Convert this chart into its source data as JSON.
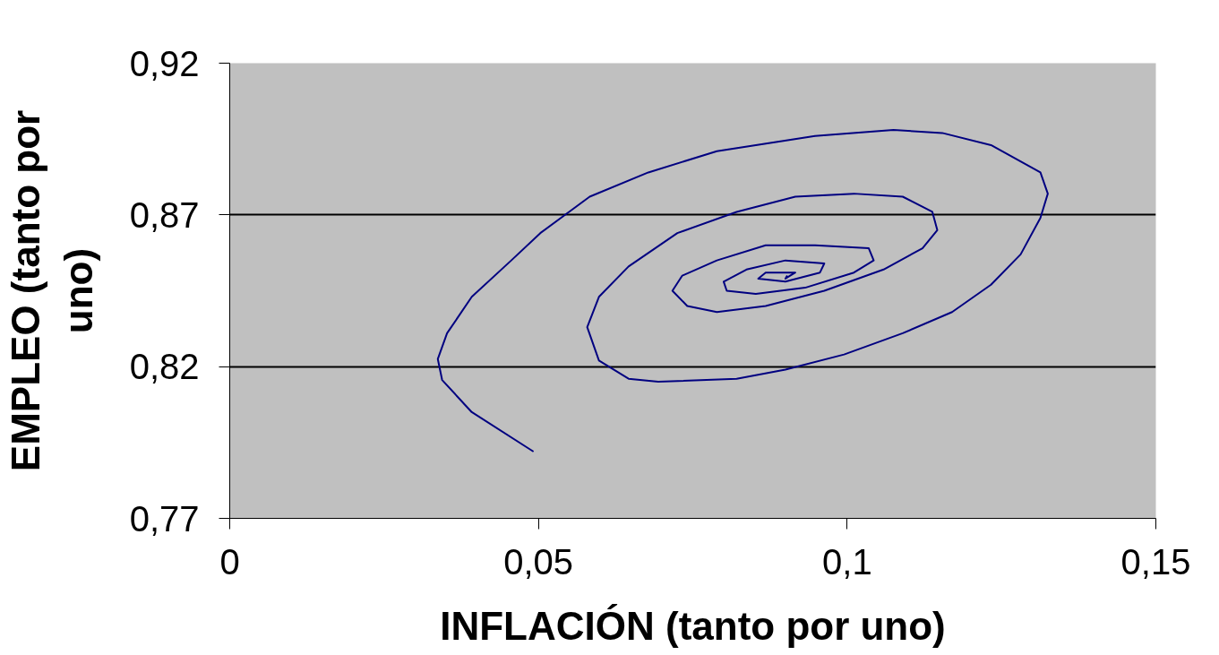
{
  "chart_data": {
    "type": "line",
    "xlabel": "INFLACIÓN (tanto por uno)",
    "ylabel": "EMPLEO (tanto por uno)",
    "xlim": [
      0,
      0.15
    ],
    "ylim": [
      0.77,
      0.92
    ],
    "xticks": [
      0,
      {
        "value": 0.05,
        "label": "0,05"
      },
      {
        "value": 0.1,
        "label": "0,1"
      },
      {
        "value": 0.15,
        "label": "0,15"
      }
    ],
    "yticks": [
      {
        "value": 0.77,
        "label": "0,77"
      },
      {
        "value": 0.82,
        "label": "0,82"
      },
      {
        "value": 0.87,
        "label": "0,87"
      },
      {
        "value": 0.92,
        "label": "0,92"
      }
    ],
    "grid": "y",
    "marker": "none",
    "line_style": "solid",
    "series": [
      {
        "color": "#000080",
        "x": [
          0.0492,
          0.0392,
          0.0344,
          0.0337,
          0.0352,
          0.0392,
          0.0456,
          0.0503,
          0.0583,
          0.0678,
          0.0789,
          0.0948,
          0.1075,
          0.1154,
          0.1233,
          0.1313,
          0.1325,
          0.1313,
          0.1281,
          0.1233,
          0.117,
          0.109,
          0.0995,
          0.09,
          0.0821,
          0.0694,
          0.0646,
          0.0598,
          0.0579,
          0.0598,
          0.0646,
          0.0725,
          0.0821,
          0.0916,
          0.1011,
          0.109,
          0.1138,
          0.1146,
          0.1122,
          0.1059,
          0.0963,
          0.0868,
          0.0789,
          0.0741,
          0.0717,
          0.0733,
          0.0789,
          0.0868,
          0.0948,
          0.1035,
          0.1043,
          0.1011,
          0.0932,
          0.0852,
          0.0805,
          0.08,
          0.0837,
          0.09,
          0.0963,
          0.0956,
          0.09,
          0.0856,
          0.0868,
          0.0916,
          0.09,
          0.0903
        ],
        "values": [
          0.792,
          0.805,
          0.8156,
          0.8225,
          0.831,
          0.843,
          0.855,
          0.864,
          0.876,
          0.884,
          0.891,
          0.896,
          0.898,
          0.897,
          0.893,
          0.884,
          0.877,
          0.869,
          0.857,
          0.847,
          0.838,
          0.831,
          0.824,
          0.819,
          0.816,
          0.815,
          0.816,
          0.822,
          0.833,
          0.843,
          0.853,
          0.864,
          0.871,
          0.876,
          0.877,
          0.876,
          0.871,
          0.865,
          0.859,
          0.852,
          0.845,
          0.84,
          0.838,
          0.84,
          0.845,
          0.85,
          0.855,
          0.86,
          0.86,
          0.859,
          0.855,
          0.851,
          0.846,
          0.844,
          0.845,
          0.848,
          0.852,
          0.855,
          0.854,
          0.851,
          0.848,
          0.849,
          0.851,
          0.851,
          0.849,
          0.85
        ]
      }
    ]
  }
}
